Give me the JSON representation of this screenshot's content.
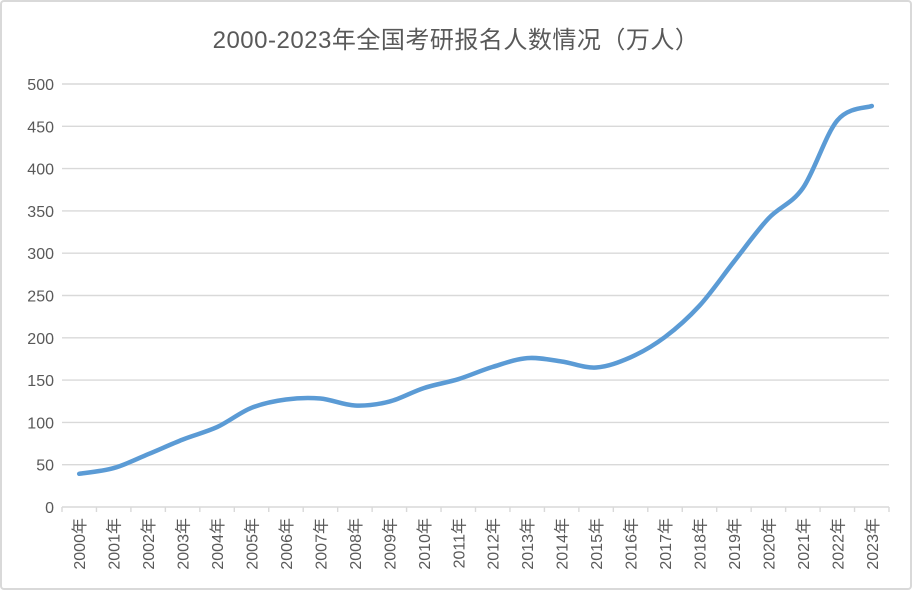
{
  "chart": {
    "title": "2000-2023年全国考研报名人数情况（万人）"
  },
  "chart_data": {
    "type": "line",
    "title": "2000-2023年全国考研报名人数情况（万人）",
    "categories": [
      "2000年",
      "2001年",
      "2002年",
      "2003年",
      "2004年",
      "2005年",
      "2006年",
      "2007年",
      "2008年",
      "2009年",
      "2010年",
      "2011年",
      "2012年",
      "2013年",
      "2014年",
      "2015年",
      "2016年",
      "2017年",
      "2018年",
      "2019年",
      "2020年",
      "2021年",
      "2022年",
      "2023年"
    ],
    "values": [
      39.2,
      46,
      62.4,
      79.7,
      94.5,
      117.2,
      127.1,
      128.2,
      120,
      124.6,
      140.6,
      151.1,
      165.6,
      176,
      172,
      164.9,
      177,
      201,
      238,
      290,
      341,
      377,
      457,
      474
    ],
    "xlabel": "",
    "ylabel": "",
    "ylim": [
      0,
      500
    ],
    "yticks": [
      0,
      50,
      100,
      150,
      200,
      250,
      300,
      350,
      400,
      450,
      500
    ],
    "grid": true,
    "legend": false,
    "smoothed": true,
    "colors": {
      "line": "#5B9BD5",
      "gridline": "#D9D9D9",
      "axis": "#D9D9D9",
      "text": "#595959",
      "background": "#FFFFFF",
      "border": "#D9D9D9"
    }
  }
}
